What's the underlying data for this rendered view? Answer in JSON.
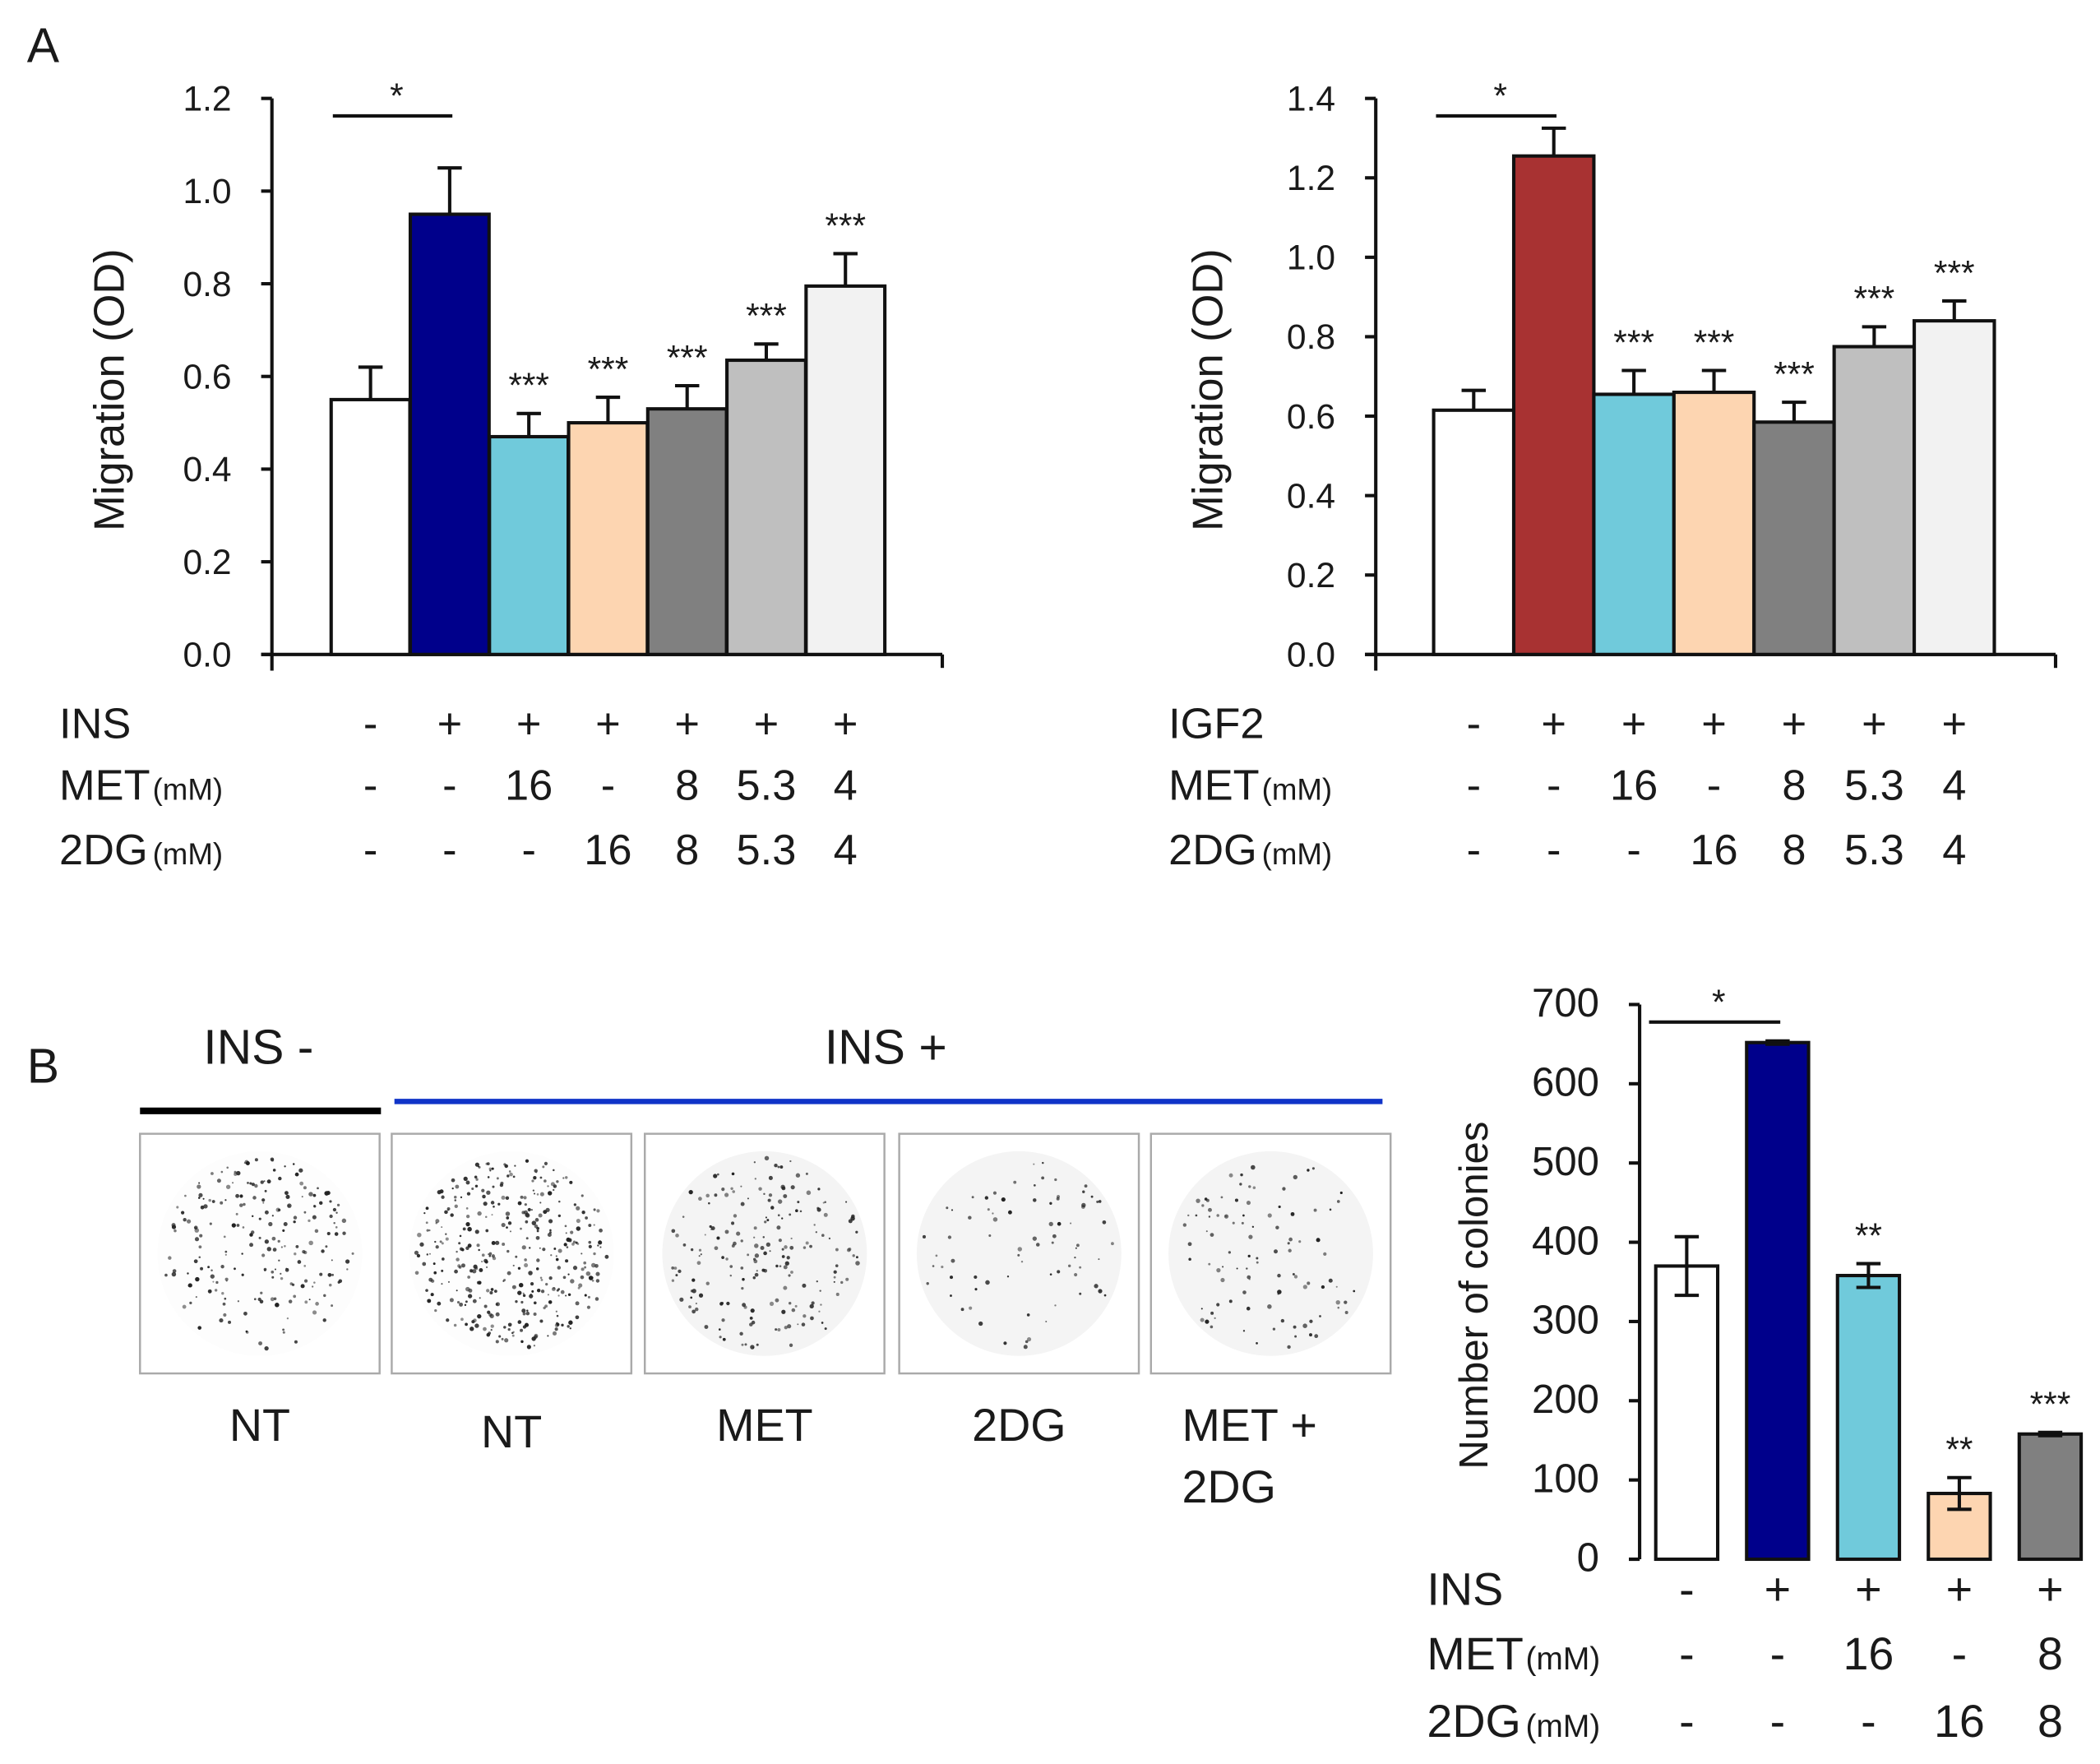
{
  "panels": {
    "A": "A",
    "B": "B"
  },
  "chart_data": [
    {
      "id": "A-ins",
      "type": "bar",
      "ylabel": "Migration (OD)",
      "ylim": [
        0,
        1.2
      ],
      "yticks": [
        "0.0",
        "0.2",
        "0.4",
        "0.6",
        "0.8",
        "1.0",
        "1.2"
      ],
      "ytick_values": [
        0,
        0.2,
        0.4,
        0.6,
        0.8,
        1.0,
        1.2
      ],
      "values": [
        0.55,
        0.95,
        0.47,
        0.5,
        0.53,
        0.635,
        0.795
      ],
      "errors": [
        0.07,
        0.1,
        0.05,
        0.055,
        0.05,
        0.035,
        0.07
      ],
      "colors": [
        "#ffffff",
        "#00008b",
        "#70cadb",
        "#fdd5b1",
        "#808080",
        "#bfbfbf",
        "#f2f2f2"
      ],
      "significance": [
        "",
        "",
        "***",
        "***",
        "***",
        "***",
        "***"
      ],
      "comparison": {
        "from": 0,
        "to": 1,
        "label": "*"
      },
      "rows": [
        {
          "label": "INS",
          "unit": "",
          "color": "#1034c8",
          "values": [
            "-",
            "+",
            "+",
            "+",
            "+",
            "+",
            "+"
          ]
        },
        {
          "label": "MET",
          "unit": "(mM)",
          "color": "#1a1a1a",
          "values": [
            "-",
            "-",
            "16",
            "-",
            "8",
            "5.3",
            "4"
          ]
        },
        {
          "label": "2DG",
          "unit": "(mM)",
          "color": "#1a1a1a",
          "values": [
            "-",
            "-",
            "-",
            "16",
            "8",
            "5.3",
            "4"
          ]
        }
      ]
    },
    {
      "id": "A-igf2",
      "type": "bar",
      "ylabel": "Migration (OD)",
      "ylim": [
        0,
        1.4
      ],
      "yticks": [
        "0.0",
        "0.2",
        "0.4",
        "0.6",
        "0.8",
        "1.0",
        "1.2",
        "1.4"
      ],
      "ytick_values": [
        0,
        0.2,
        0.4,
        0.6,
        0.8,
        1.0,
        1.2,
        1.4
      ],
      "values": [
        0.615,
        1.255,
        0.655,
        0.66,
        0.585,
        0.775,
        0.84
      ],
      "errors": [
        0.05,
        0.07,
        0.06,
        0.055,
        0.05,
        0.05,
        0.05
      ],
      "colors": [
        "#ffffff",
        "#a83232",
        "#70cadb",
        "#fdd5b1",
        "#808080",
        "#bfbfbf",
        "#f2f2f2"
      ],
      "significance": [
        "",
        "",
        "***",
        "***",
        "***",
        "***",
        "***"
      ],
      "comparison": {
        "from": 0,
        "to": 1,
        "label": "*"
      },
      "rows": [
        {
          "label": "IGF2",
          "unit": "",
          "color": "#e01a1a",
          "values": [
            "-",
            "+",
            "+",
            "+",
            "+",
            "+",
            "+"
          ]
        },
        {
          "label": "MET",
          "unit": "(mM)",
          "color": "#1a1a1a",
          "values": [
            "-",
            "-",
            "16",
            "-",
            "8",
            "5.3",
            "4"
          ]
        },
        {
          "label": "2DG",
          "unit": "(mM)",
          "color": "#1a1a1a",
          "values": [
            "-",
            "-",
            "-",
            "16",
            "8",
            "5.3",
            "4"
          ]
        }
      ]
    },
    {
      "id": "B-colonies",
      "type": "bar",
      "ylabel": "Number of colonies",
      "ylim": [
        0,
        700
      ],
      "yticks": [
        "0",
        "100",
        "200",
        "300",
        "400",
        "500",
        "600",
        "700"
      ],
      "ytick_values": [
        0,
        100,
        200,
        300,
        400,
        500,
        600,
        700
      ],
      "values": [
        370,
        652,
        358,
        83,
        158
      ],
      "errors": [
        37,
        2,
        15,
        20,
        2
      ],
      "colors": [
        "#ffffff",
        "#00008b",
        "#70cadb",
        "#fdd5b1",
        "#808080"
      ],
      "significance": [
        "",
        "",
        "**",
        "**",
        "***"
      ],
      "comparison": {
        "from": 0,
        "to": 1,
        "label": "*"
      },
      "rows": [
        {
          "label": "INS",
          "unit": "",
          "color": "#1034c8",
          "values": [
            "-",
            "+",
            "+",
            "+",
            "+"
          ]
        },
        {
          "label": "MET",
          "unit": "(mM)",
          "color": "#1a1a1a",
          "values": [
            "-",
            "-",
            "16",
            "-",
            "8"
          ]
        },
        {
          "label": "2DG",
          "unit": "(mM)",
          "color": "#1a1a1a",
          "values": [
            "-",
            "-",
            "-",
            "16",
            "8"
          ]
        }
      ]
    }
  ],
  "colony_images": {
    "group_minus": {
      "label": "INS -",
      "color": "#1034c8",
      "bar_color": "#000000"
    },
    "group_plus": {
      "label": "INS +",
      "color": "#1034c8",
      "bar_color": "#1034c8"
    },
    "wells": [
      {
        "label": "NT",
        "label2": "",
        "density": 1.0
      },
      {
        "label": "NT",
        "label2": "",
        "density": 1.7
      },
      {
        "label": "MET",
        "label2": "",
        "density": 0.9
      },
      {
        "label": "2DG",
        "label2": "",
        "density": 0.35
      },
      {
        "label": "MET +",
        "label2": "2DG",
        "density": 0.45
      }
    ]
  }
}
